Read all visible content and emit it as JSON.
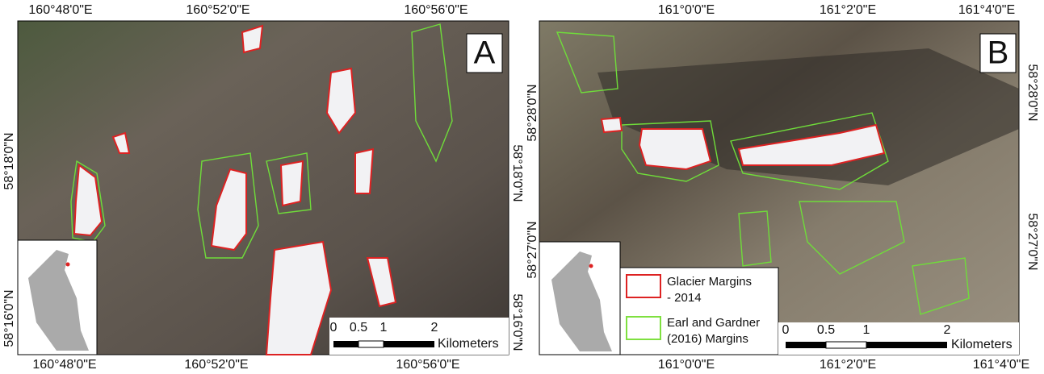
{
  "panel_a": {
    "letter": "A",
    "top_labels": [
      "160°48'0\"E",
      "160°52'0\"E",
      "160°56'0\"E"
    ],
    "bottom_labels": [
      "160°48'0\"E",
      "160°52'0\"E",
      "160°56'0\"E"
    ],
    "left_labels": [
      "58°18'0\"N",
      "58°16'0\"N"
    ],
    "right_labels": [
      "58°18'0\"N",
      "58°16'0\"N"
    ],
    "scale_bar": {
      "labels": [
        "0",
        "0.5",
        "1",
        "2"
      ],
      "unit": "Kilometers"
    }
  },
  "panel_b": {
    "letter": "B",
    "top_labels": [
      "161°0'0\"E",
      "161°2'0\"E",
      "161°4'0\"E"
    ],
    "bottom_labels": [
      "161°0'0\"E",
      "161°2'0\"E",
      "161°4'0\"E"
    ],
    "left_labels": [
      "58°28'0\"N",
      "58°27'0\"N"
    ],
    "right_labels": [
      "58°28'0\"N",
      "58°27'0\"N"
    ],
    "legend": [
      {
        "line1": "Glacier Margins",
        "line2": "- 2014"
      },
      {
        "line1": "Earl and Gardner",
        "line2": "(2016) Margins"
      }
    ],
    "scale_bar": {
      "labels": [
        "0",
        "0.5",
        "1",
        "2"
      ],
      "unit": "Kilometers"
    }
  }
}
